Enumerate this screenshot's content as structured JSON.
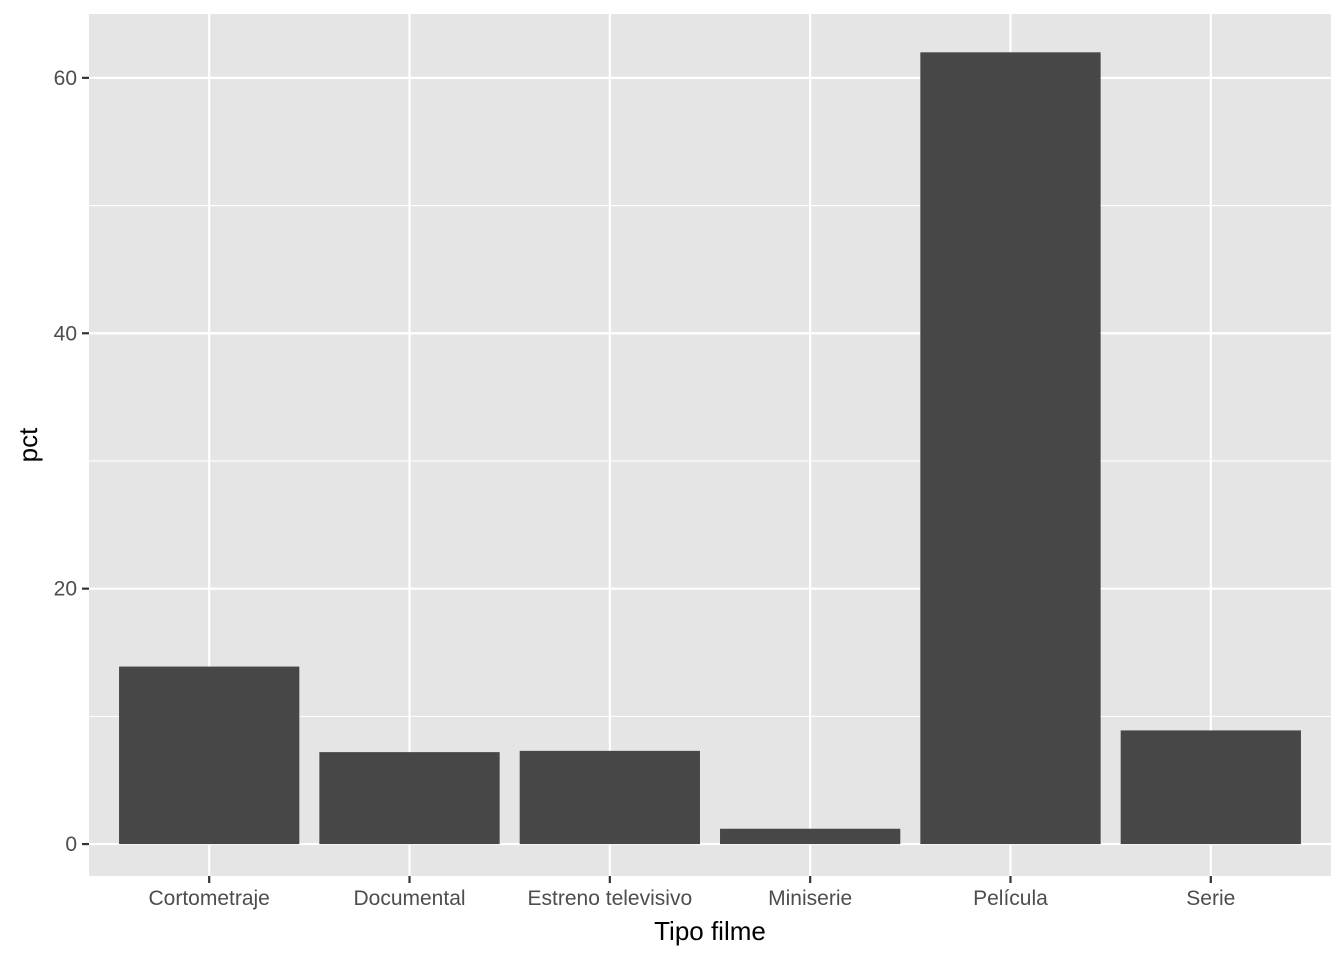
{
  "chart_data": {
    "type": "bar",
    "title": "",
    "xlabel": "Tipo filme",
    "ylabel": "pct",
    "categories": [
      "Cortometraje",
      "Documental",
      "Estreno televisivo",
      "Miniserie",
      "Película",
      "Serie"
    ],
    "values": [
      13.9,
      7.2,
      7.3,
      1.2,
      62.0,
      8.9
    ],
    "ylim": [
      -2.5,
      65
    ],
    "yticks": [
      0,
      20,
      40,
      60
    ],
    "grid": true,
    "legend": "none",
    "colors": {
      "bar": "#474747",
      "panel": "#e5e5e5",
      "grid": "#ffffff",
      "tick_text": "#4d4d4d",
      "axis_title": "#000000"
    }
  }
}
